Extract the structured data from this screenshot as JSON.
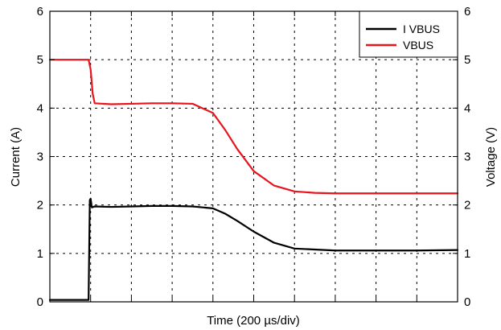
{
  "chart_data": {
    "type": "line",
    "xlabel": "Time (200 µs/div)",
    "ylabel_left": "Current (A)",
    "ylabel_right": "Voltage (V)",
    "x_divisions": 10,
    "ylim_left": [
      0,
      6
    ],
    "ylim_right": [
      0,
      6
    ],
    "yticks_left": [
      "0",
      "1",
      "2",
      "3",
      "4",
      "5",
      "6"
    ],
    "yticks_right": [
      "0",
      "1",
      "2",
      "3",
      "4",
      "5",
      "6"
    ],
    "grid": "dashed",
    "legend_position": "top-right",
    "series": [
      {
        "name": "I VBUS",
        "axis": "left",
        "color": "#000000",
        "x": [
          0,
          0.5,
          0.95,
          0.98,
          1.0,
          1.03,
          1.1,
          1.5,
          2.0,
          2.5,
          3.0,
          3.5,
          4.0,
          4.3,
          4.6,
          5.0,
          5.5,
          6.0,
          7.0,
          8.0,
          9.0,
          10.0
        ],
        "y": [
          0.04,
          0.04,
          0.04,
          2.1,
          2.13,
          1.95,
          1.97,
          1.96,
          1.97,
          1.98,
          1.98,
          1.97,
          1.93,
          1.82,
          1.67,
          1.45,
          1.22,
          1.1,
          1.06,
          1.06,
          1.06,
          1.07
        ]
      },
      {
        "name": "VBUS",
        "axis": "right",
        "color": "#e8141c",
        "x": [
          0,
          0.5,
          0.95,
          1.0,
          1.05,
          1.1,
          1.5,
          2.0,
          2.5,
          3.0,
          3.5,
          4.0,
          4.3,
          4.6,
          5.0,
          5.5,
          6.0,
          6.5,
          7.0,
          8.0,
          9.0,
          10.0
        ],
        "y": [
          5.0,
          5.0,
          5.0,
          4.8,
          4.3,
          4.1,
          4.08,
          4.09,
          4.1,
          4.1,
          4.09,
          3.9,
          3.55,
          3.15,
          2.7,
          2.4,
          2.28,
          2.25,
          2.24,
          2.24,
          2.24,
          2.24
        ]
      }
    ]
  }
}
